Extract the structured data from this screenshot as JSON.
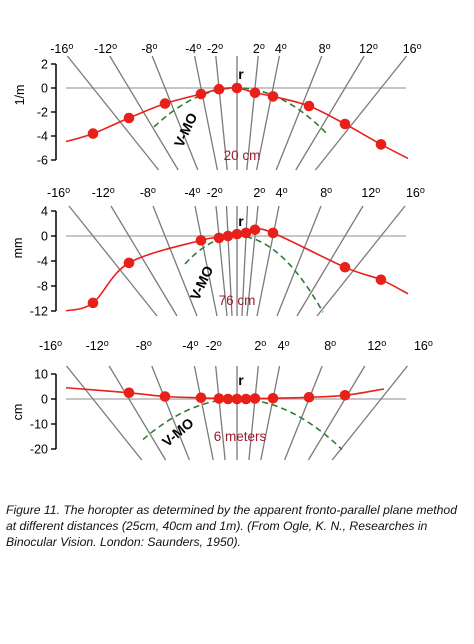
{
  "caption": "Figure 11. The horopter as determined by the apparent fronto-parallel plane method at different distances (25cm, 40cm and 1m). (From Ogle, K. N., Researches in Binocular Vision. London: Saunders, 1950).",
  "colors": {
    "curve": "#e8201a",
    "points": "#e8201a",
    "vmo": "#2e7d32",
    "zero_line": "#b4b4b4",
    "direction_lines": "#7a7a7a",
    "distance_label": "#9b1b2e"
  },
  "chart_data": [
    {
      "type": "scatter",
      "ylabel": "1/m",
      "ylim": [
        -6,
        2
      ],
      "yticks": [
        2,
        0,
        -2,
        -4,
        -6
      ],
      "directions": [
        "-16°",
        "-12°",
        "-8°",
        "-4°",
        "-2°",
        "2°",
        "4°",
        "8°",
        "12°",
        "16°"
      ],
      "fixation_label": "r",
      "distance_label": "20 cm",
      "vmo_label": "V-MO",
      "points": {
        "x": [
          -16,
          -12,
          -8,
          -4,
          -2,
          0,
          2,
          4,
          8,
          12,
          16
        ],
        "y": [
          -3.8,
          -2.5,
          -1.3,
          -0.5,
          -0.1,
          0.0,
          -0.4,
          -0.7,
          -1.5,
          -3.0,
          -4.7
        ]
      }
    },
    {
      "type": "scatter",
      "ylabel": "mm",
      "ylim": [
        -12,
        4
      ],
      "yticks": [
        4,
        0,
        -4,
        -8,
        -12
      ],
      "directions": [
        "-16°",
        "-12°",
        "-8°",
        "-4°",
        "-2°",
        "2°",
        "4°",
        "8°",
        "12°",
        "16°"
      ],
      "fixation_label": "r",
      "distance_label": "76 cm",
      "vmo_label": "V-MO",
      "points": {
        "x": [
          -16,
          -12,
          -4,
          -2,
          -1,
          0,
          1,
          2,
          4,
          12,
          16
        ],
        "y": [
          -10.7,
          -4.3,
          -0.7,
          -0.3,
          0.0,
          0.3,
          0.5,
          1.0,
          0.5,
          -5.0,
          -7.0
        ]
      }
    },
    {
      "type": "scatter",
      "ylabel": "cm",
      "ylim": [
        -20,
        10
      ],
      "yticks": [
        10,
        0,
        -10,
        -20
      ],
      "directions": [
        "-16°",
        "-12°",
        "-8°",
        "-4°",
        "-2°",
        "2°",
        "4°",
        "8°",
        "12°",
        "16°"
      ],
      "fixation_label": "r",
      "distance_label": "6 meters",
      "vmo_label": "V-MO",
      "points": {
        "x": [
          -12,
          -8,
          -4,
          -2,
          -1,
          0,
          1,
          2,
          4,
          8,
          12
        ],
        "y": [
          2.5,
          1.0,
          0.5,
          0.2,
          0.0,
          0.0,
          0.0,
          0.2,
          0.3,
          0.7,
          1.5
        ]
      }
    }
  ]
}
